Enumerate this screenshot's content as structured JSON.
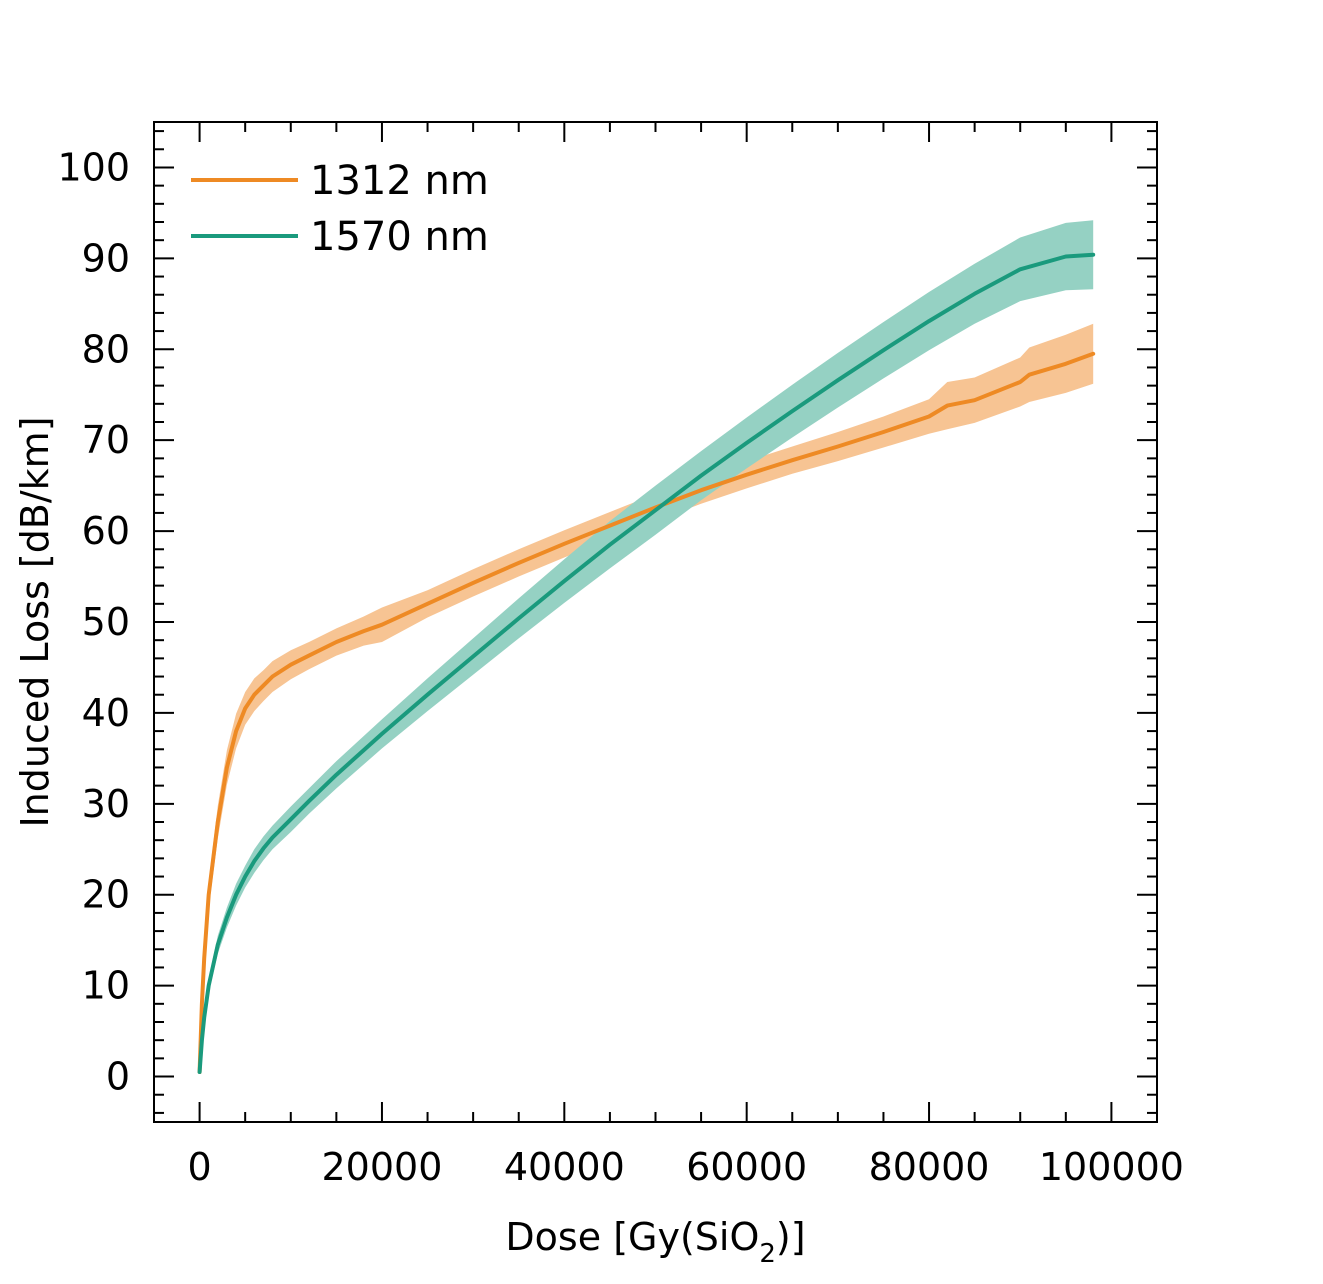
{
  "chart_data": {
    "type": "line",
    "xlabel": "Dose [Gy(SiO2)]",
    "xlabel_main": "Dose [Gy(SiO",
    "xlabel_sub": "2",
    "xlabel_end": ")]",
    "ylabel": "Induced Loss [dB/km]",
    "xlim": [
      -5000,
      105000
    ],
    "ylim": [
      -5,
      105
    ],
    "xticks": [
      0,
      20000,
      40000,
      60000,
      80000,
      100000
    ],
    "yticks": [
      0,
      10,
      20,
      30,
      40,
      50,
      60,
      70,
      80,
      90,
      100
    ],
    "xtick_labels": [
      "0",
      "20000",
      "40000",
      "60000",
      "80000",
      "100000"
    ],
    "ytick_labels": [
      "0",
      "10",
      "20",
      "30",
      "40",
      "50",
      "60",
      "70",
      "80",
      "90",
      "100"
    ],
    "legend_position": "top-left",
    "grid": false,
    "series": [
      {
        "name": "1312 nm",
        "color": "#ee8a24",
        "band_color": "#f7c493",
        "x": [
          0,
          250,
          500,
          1000,
          2000,
          3000,
          4000,
          5000,
          6000,
          7000,
          8000,
          10000,
          12000,
          15000,
          18000,
          20000,
          25000,
          30000,
          35000,
          40000,
          45000,
          50000,
          55000,
          60000,
          65000,
          70000,
          75000,
          80000,
          82000,
          85000,
          90000,
          91000,
          95000,
          98000
        ],
        "y": [
          0.5,
          8,
          13,
          20,
          28,
          34,
          38,
          40.5,
          42,
          43,
          44,
          45.3,
          46.3,
          47.8,
          49,
          49.7,
          52,
          54.3,
          56.5,
          58.6,
          60.6,
          62.6,
          64.5,
          66.2,
          67.8,
          69.3,
          70.9,
          72.6,
          73.8,
          74.4,
          76.4,
          77.2,
          78.4,
          79.5
        ],
        "band": [
          0,
          0.8,
          1.2,
          1.5,
          1.8,
          1.9,
          1.9,
          1.8,
          1.8,
          1.7,
          1.7,
          1.6,
          1.5,
          1.5,
          1.6,
          1.9,
          1.5,
          1.5,
          1.5,
          1.5,
          1.5,
          1.5,
          1.5,
          1.5,
          1.5,
          1.6,
          1.7,
          1.9,
          2.6,
          2.5,
          2.7,
          3.0,
          3.2,
          3.3
        ]
      },
      {
        "name": "1570 nm",
        "color": "#1a9a7d",
        "band_color": "#95d1c3",
        "x": [
          0,
          250,
          500,
          1000,
          2000,
          3000,
          4000,
          5000,
          6000,
          7000,
          8000,
          10000,
          12000,
          15000,
          20000,
          25000,
          30000,
          35000,
          40000,
          45000,
          50000,
          55000,
          60000,
          65000,
          70000,
          75000,
          80000,
          85000,
          90000,
          95000,
          98000
        ],
        "y": [
          0.5,
          4,
          6.5,
          10,
          14.5,
          17.5,
          20,
          22,
          23.7,
          25.1,
          26.3,
          28.3,
          30.3,
          33.2,
          37.7,
          42,
          46.2,
          50.4,
          54.5,
          58.5,
          62.3,
          66.1,
          69.7,
          73.2,
          76.6,
          79.9,
          83.1,
          86.1,
          88.8,
          90.2,
          90.4
        ],
        "band": [
          0,
          0.4,
          0.6,
          0.8,
          1.0,
          1.1,
          1.2,
          1.2,
          1.3,
          1.3,
          1.3,
          1.4,
          1.4,
          1.5,
          1.6,
          1.8,
          2.0,
          2.2,
          2.4,
          2.6,
          2.7,
          2.7,
          2.8,
          2.9,
          3.0,
          3.1,
          3.2,
          3.3,
          3.5,
          3.7,
          3.8
        ]
      }
    ]
  }
}
